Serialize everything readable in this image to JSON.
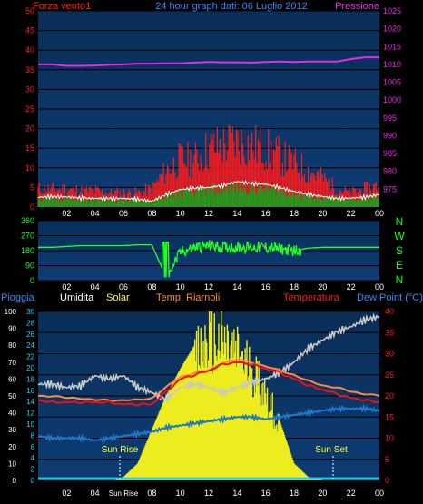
{
  "colors": {
    "background": "#000000",
    "plot_top": "#0a2e57",
    "plot_bottom": "#0d3c74",
    "grid": "#000000",
    "wind_gust": "#ff1a1a",
    "wind_avg": "#1aa51a",
    "wind_line": "#ffffff",
    "pressure": "#e22ee2",
    "direction": "#22ff22",
    "rain": "#22d0f0",
    "humidity": "#c8c8c8",
    "solar": "#ecec1e",
    "feels_like": "#ff8844",
    "temperature": "#ee1111",
    "dew_point": "#1f78c8",
    "left_axis_text": "#ff1a1a",
    "right_axis_text": "#e22ee2",
    "dir_axis_text": "#1aff1a",
    "label_blue": "#3388ff",
    "label_yellow": "#ffff22",
    "label_orange": "#ff8a3a",
    "label_white": "#ffffff",
    "sun_text": "#ffff22"
  },
  "header": {
    "left": "Forza vento1",
    "center": "24 hour graph dati:  06 Luglio 2012",
    "right": "Pressione"
  },
  "compass": [
    "N",
    "W",
    "S",
    "E",
    "N"
  ],
  "bottom_header": {
    "rain": "Pioggia",
    "humidity": "Umidita",
    "solar": "Solar",
    "feels": "Temp. Riarnoli",
    "temperature": "Temperatura",
    "dewpoint": "Dew Point (°C)"
  },
  "sun": {
    "rise": "Sun Rise",
    "set": "Sun Set"
  },
  "chart_data": [
    {
      "type": "area",
      "title": "24 hour graph dati:  06 Luglio 2012",
      "ylabel": "Forza vento1",
      "y2label": "Pressione",
      "ylim": [
        0,
        50
      ],
      "y2lim": [
        970,
        1025
      ],
      "yticks": [
        0,
        5,
        10,
        15,
        20,
        25,
        30,
        35,
        40,
        45,
        50
      ],
      "y2ticks": [
        975,
        980,
        985,
        990,
        995,
        1000,
        1005,
        1010,
        1015,
        1020,
        1025
      ],
      "xticks": [
        "02",
        "04",
        "06",
        "08",
        "10",
        "12",
        "14",
        "16",
        "18",
        "20",
        "22",
        "00"
      ],
      "x_hours": [
        0,
        1,
        2,
        3,
        4,
        5,
        6,
        7,
        8,
        9,
        10,
        11,
        12,
        13,
        14,
        15,
        16,
        17,
        18,
        19,
        20,
        21,
        22,
        23,
        24
      ],
      "series": [
        {
          "key": "gust",
          "values": [
            5,
            5,
            5,
            4.5,
            4.5,
            4,
            4,
            4,
            5,
            10,
            13,
            13,
            16,
            17,
            18,
            17,
            16,
            14,
            12,
            10,
            8,
            5,
            4,
            5,
            6
          ]
        },
        {
          "key": "avg",
          "values": [
            2.5,
            2.5,
            2.5,
            2,
            2,
            2,
            2,
            2,
            1.5,
            3,
            4,
            4,
            4.5,
            5,
            5.5,
            5,
            5,
            4.5,
            3.5,
            3,
            2.5,
            2,
            2,
            2.5,
            3
          ]
        },
        {
          "key": "avg_line",
          "values": [
            2.5,
            2.7,
            2.6,
            2.3,
            2.2,
            2.2,
            2.2,
            2.0,
            1.5,
            3.2,
            4.5,
            4.8,
            5.0,
            5.5,
            6.5,
            6.0,
            5.8,
            5.0,
            4.0,
            3.2,
            2.7,
            2.2,
            2.3,
            2.5,
            3.2
          ]
        },
        {
          "key": "pressure",
          "values": [
            1010,
            1010,
            1009.6,
            1009.6,
            1009.7,
            1009.9,
            1010,
            1010.2,
            1010.2,
            1010.3,
            1010.3,
            1010.5,
            1010.7,
            1010.6,
            1010.6,
            1010.5,
            1010.7,
            1010.8,
            1010.7,
            1010.8,
            1010.8,
            1010.8,
            1011.5,
            1012,
            1012
          ]
        }
      ]
    },
    {
      "type": "line",
      "ylim": [
        0,
        360
      ],
      "yticks": [
        0,
        90,
        180,
        270,
        360
      ],
      "series": [
        {
          "key": "direction",
          "values": [
            200,
            200,
            205,
            210,
            210,
            210,
            210,
            215,
            215,
            20,
            170,
            200,
            210,
            200,
            200,
            200,
            200,
            190,
            180,
            195,
            200,
            200,
            200,
            200,
            200
          ]
        }
      ]
    },
    {
      "type": "line",
      "yleft_rain": [
        0,
        100
      ],
      "yleft_humidity": [
        0,
        30
      ],
      "ytemp": [
        0,
        40
      ],
      "yticks_rain": [
        0,
        10,
        20,
        30,
        40,
        50,
        60,
        70,
        80,
        90,
        100
      ],
      "yticks_hum": [
        0,
        2,
        4,
        6,
        8,
        10,
        12,
        14,
        16,
        18,
        20,
        22,
        24,
        26,
        28,
        30
      ],
      "yticks_temp": [
        0,
        5,
        10,
        15,
        20,
        25,
        30,
        35,
        40
      ],
      "xticks": [
        "02",
        "04",
        "Sun Rise",
        "08",
        "10",
        "12",
        "14",
        "16",
        "18",
        "20",
        "22",
        "00"
      ],
      "series": [
        {
          "key": "rain",
          "unit": "mm",
          "values": [
            1,
            1,
            1,
            1,
            1,
            1,
            1,
            1,
            1,
            1,
            1,
            1,
            1,
            1,
            1,
            1,
            1,
            1,
            1,
            1,
            1,
            1,
            1,
            1,
            1
          ]
        },
        {
          "key": "humidity",
          "unit": "%",
          "values": [
            57,
            57,
            55,
            56,
            62,
            60,
            62,
            55,
            52,
            48,
            55,
            57,
            55,
            52,
            55,
            58,
            60,
            64,
            70,
            78,
            83,
            88,
            91,
            95,
            97
          ]
        },
        {
          "key": "solar",
          "unit": "W/m2",
          "values": [
            0,
            0,
            0,
            0,
            0,
            0,
            2,
            10,
            30,
            50,
            66,
            80,
            95,
            92,
            85,
            75,
            60,
            35,
            10,
            2,
            0,
            0,
            0,
            0,
            0
          ]
        },
        {
          "key": "feels",
          "unit": "°C",
          "values": [
            20,
            20,
            19.5,
            19.5,
            19,
            19,
            19,
            19,
            19.5,
            22,
            24.5,
            25.5,
            26,
            28,
            28.5,
            28,
            27,
            26,
            25,
            23.5,
            22.5,
            22,
            21,
            20.5,
            20
          ]
        },
        {
          "key": "temperature",
          "unit": "°C",
          "values": [
            19,
            18.5,
            18.5,
            18.5,
            18.5,
            18.5,
            18,
            18,
            18,
            21,
            24,
            25,
            26,
            27.5,
            28,
            27.5,
            26.5,
            25.5,
            24,
            22.5,
            21.5,
            20.5,
            19.5,
            19,
            18.5
          ]
        },
        {
          "key": "dewpoint",
          "unit": "°C",
          "values": [
            10.5,
            10,
            10,
            10,
            9.5,
            10,
            10.5,
            11,
            11.5,
            12.5,
            13,
            13.5,
            14,
            14.5,
            15,
            15,
            14.5,
            15,
            15.5,
            16,
            16.5,
            17,
            17,
            17,
            16.5
          ]
        }
      ]
    }
  ]
}
